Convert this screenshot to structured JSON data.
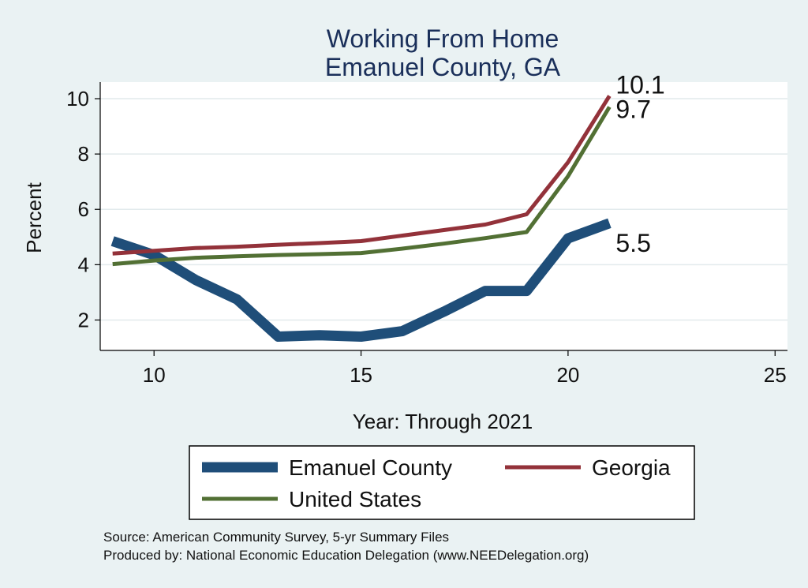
{
  "chart_data": {
    "type": "line",
    "title": "Working From Home",
    "subtitle": "Emanuel County, GA",
    "xlabel": "Year: Through 2021",
    "ylabel": "Percent",
    "xlim": [
      8.7,
      25.3
    ],
    "ylim": [
      0.9,
      10.6
    ],
    "xticks": [
      10,
      15,
      20,
      25
    ],
    "yticks": [
      2,
      4,
      6,
      8,
      10
    ],
    "grid": true,
    "legend_position": "bottom",
    "series": [
      {
        "name": "Emanuel County",
        "color": "#1f4e79",
        "x": [
          9,
          10,
          11,
          12,
          13,
          14,
          15,
          16,
          17,
          18,
          19,
          20,
          21
        ],
        "values": [
          4.85,
          4.35,
          3.45,
          2.75,
          1.4,
          1.45,
          1.4,
          1.6,
          2.3,
          3.05,
          3.05,
          4.95,
          5.5
        ],
        "end_label": "5.5"
      },
      {
        "name": "Georgia",
        "color": "#93323a",
        "x": [
          9,
          10,
          11,
          12,
          13,
          14,
          15,
          16,
          17,
          18,
          19,
          20,
          21
        ],
        "values": [
          4.4,
          4.5,
          4.6,
          4.65,
          4.72,
          4.78,
          4.85,
          5.05,
          5.25,
          5.45,
          5.82,
          7.7,
          10.1
        ],
        "end_label": "10.1"
      },
      {
        "name": "United States",
        "color": "#527034",
        "x": [
          9,
          10,
          11,
          12,
          13,
          14,
          15,
          16,
          17,
          18,
          19,
          20,
          21
        ],
        "values": [
          4.02,
          4.15,
          4.25,
          4.3,
          4.35,
          4.38,
          4.42,
          4.58,
          4.76,
          4.96,
          5.18,
          7.2,
          9.7
        ],
        "end_label": "9.7"
      }
    ]
  },
  "footer": {
    "source": "Source: American Community Survey, 5-yr Summary Files",
    "produced": "Produced by: National Economic Education Delegation (www.NEEDelegation.org)"
  }
}
